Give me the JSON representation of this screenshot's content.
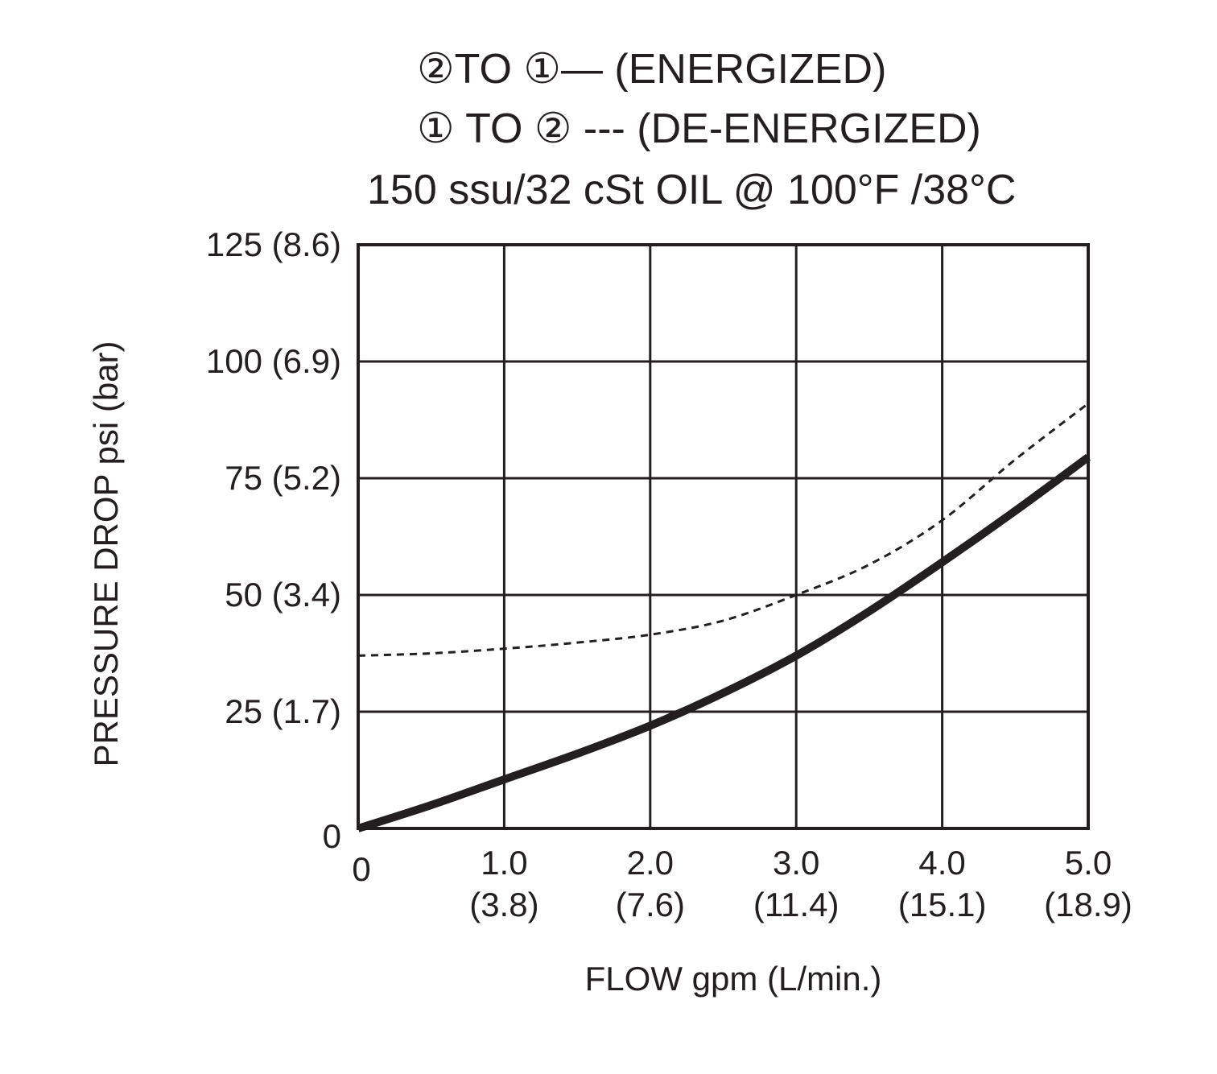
{
  "chart_data": {
    "type": "line",
    "title_lines": [
      "②TO ①— (ENERGIZED)",
      "① TO ② --- (DE-ENERGIZED)",
      "150 ssu/32 cSt OIL @ 100°F /38°C"
    ],
    "xlabel": "FLOW gpm (L/min.)",
    "ylabel": "PRESSURE DROP psi (bar)",
    "xlim": [
      0,
      5
    ],
    "ylim": [
      0,
      125
    ],
    "grid": true,
    "x_ticks": [
      {
        "value": 0,
        "line1": "0",
        "line2": ""
      },
      {
        "value": 1,
        "line1": "1.0",
        "line2": "(3.8)"
      },
      {
        "value": 2,
        "line1": "2.0",
        "line2": "(7.6)"
      },
      {
        "value": 3,
        "line1": "3.0",
        "line2": "(11.4)"
      },
      {
        "value": 4,
        "line1": "4.0",
        "line2": "(15.1)"
      },
      {
        "value": 5,
        "line1": "5.0",
        "line2": "(18.9)"
      }
    ],
    "y_ticks": [
      {
        "value": 0,
        "label": "0"
      },
      {
        "value": 25,
        "label": "25 (1.7)"
      },
      {
        "value": 50,
        "label": "50 (3.4)"
      },
      {
        "value": 75,
        "label": "75 (5.2)"
      },
      {
        "value": 100,
        "label": "100 (6.9)"
      },
      {
        "value": 125,
        "label": "125 (8.6)"
      }
    ],
    "series": [
      {
        "style": "solid",
        "x": [
          0,
          0.5,
          1.0,
          1.5,
          2.0,
          2.5,
          3.0,
          3.5,
          4.0,
          4.5,
          5.0
        ],
        "y": [
          0,
          5,
          10.5,
          16,
          22,
          29,
          37,
          46.5,
          57,
          68,
          79.5
        ]
      },
      {
        "style": "dashed",
        "x": [
          0,
          0.5,
          1.0,
          1.5,
          2.0,
          2.5,
          3.0,
          3.5,
          4.0,
          4.5,
          5.0
        ],
        "y": [
          37,
          37.5,
          38.5,
          39.8,
          41.5,
          44.5,
          50,
          56.5,
          66,
          79,
          91
        ]
      }
    ]
  }
}
